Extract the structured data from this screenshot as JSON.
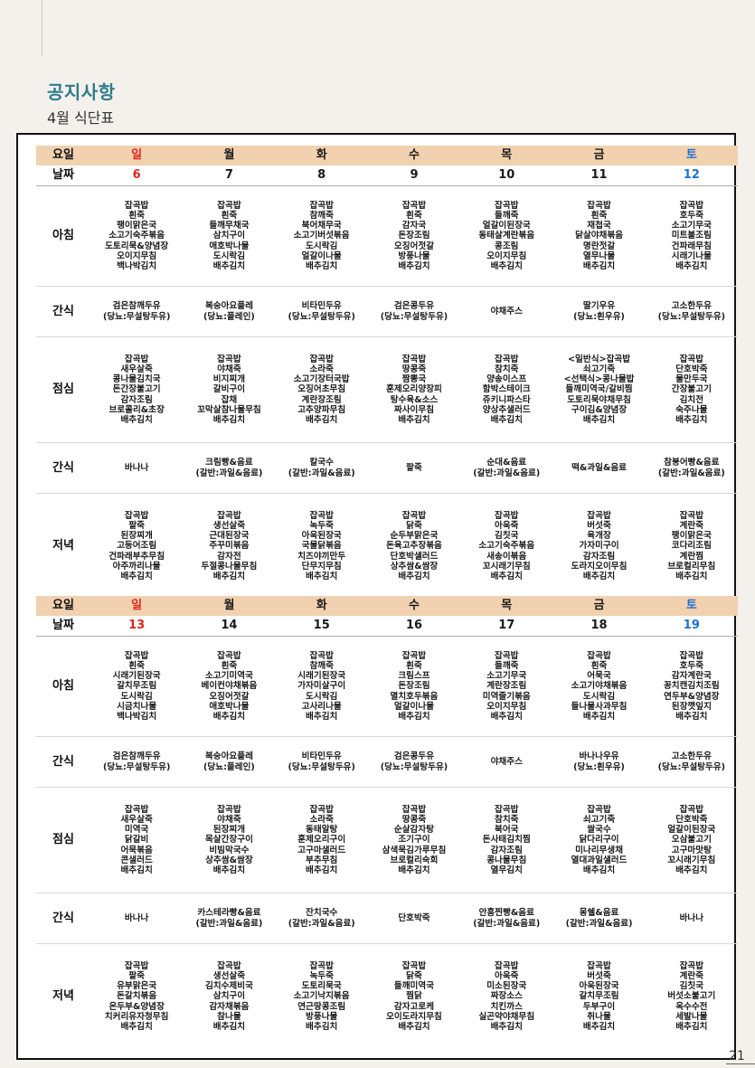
{
  "header": {
    "title": "공지사항",
    "subtitle": "4월 식단표"
  },
  "labels": {
    "day": "요일",
    "date": "날짜",
    "breakfast": "아침",
    "snack": "간식",
    "lunch": "점심",
    "dinner": "저녁"
  },
  "day_names": [
    "일",
    "월",
    "화",
    "수",
    "목",
    "금",
    "토"
  ],
  "weeks": [
    {
      "dates": [
        "6",
        "7",
        "8",
        "9",
        "10",
        "11",
        "12"
      ],
      "breakfast": [
        "잡곡밥\n흰죽\n팽이맑은국\n소고기숙주볶음\n도토리묵&양념장\n오이지무침\n백나박김치",
        "잡곡밥\n흰죽\n들깨무채국\n삼치구이\n애호박나물\n도시락김\n배추김치",
        "잡곡밥\n참깨죽\n북어채무국\n소고기버섯볶음\n도시락김\n얼갈이나물\n배추김치",
        "잡곡밥\n흰죽\n감자국\n돈장조림\n오징어젓갈\n방풍나물\n배추김치",
        "잡곡밥\n들깨죽\n얼갈이된장국\n동태살계란볶음\n콩조림\n오이지무침\n배추김치",
        "잡곡밥\n흰죽\n재첩국\n닭살야채볶음\n명란젓갈\n열무나물\n배추김치",
        "잡곡밥\n호두죽\n소고기무국\n미트볼조림\n건파래무침\n시래기나물\n배추김치"
      ],
      "snack1": [
        "검은참깨두유\n(당뇨:무설탕두유)",
        "복숭아요플레\n(당뇨:플레인)",
        "비타민두유\n(당뇨:무설탕두유)",
        "검은콩두유\n(당뇨:무설탕두유)",
        "야채주스",
        "딸기우유\n(당뇨:흰우유)",
        "고소한두유\n(당뇨:무설탕두유)"
      ],
      "lunch": [
        "잡곡밥\n새우살죽\n콩나물김치국\n돈간장불고기\n감자조림\n브로콜리&초장\n배추김치",
        "잡곡밥\n야채죽\n비지찌개\n갈비구이\n잡채\n꼬막살참나물무침\n배추김치",
        "잡곡밥\n소라죽\n소고기장터국밥\n오징어초무침\n계란장조림\n고추양파무침\n배추김치",
        "잡곡밥\n땅콩죽\n짬뽕국\n훈제오리양장피\n탕수육&소스\n짜사이무침\n배추김치",
        "잡곡밥\n참치죽\n양송이스프\n함박스테이크\n쥬키니파스타\n양상추샐러드\n배추김치",
        "<일반식>잡곡밥\n쇠고기죽\n<선택식>콩나물밥\n들깨미역국/갈비찜\n도토리묵야채무침\n구이김&양념장\n배추김치",
        "잡곡밥\n단호박죽\n물만두국\n간장불고기\n김치전\n숙주나물\n배추김치"
      ],
      "snack2": [
        "바나나",
        "크림빵&음료\n(갈반:과일&음료)",
        "칼국수\n(갈반:과일&음료)",
        "팥죽",
        "순대&음료\n(갈반:과일&음료)",
        "떡&과일&음료",
        "참붕어빵&음료\n(갈반:과일&음료)"
      ],
      "dinner": [
        "잡곡밥\n팥죽\n된장찌개\n고등어조림\n건파래부추무침\n아주까리나물\n배추김치",
        "잡곡밥\n생선살죽\n근대된장국\n주꾸미볶음\n감자전\n두절콩나물무침\n배추김치",
        "잡곡밥\n녹두죽\n아욱된장국\n국물닭볶음\n치즈야끼만두\n단무지무침\n배추김치",
        "잡곡밥\n닭죽\n순두부맑은국\n돈육고추장볶음\n단호박샐러드\n상추쌈&쌈장\n배추김치",
        "잡곡밥\n아욱죽\n김칫국\n소고기숙주볶음\n새송이볶음\n꼬시래기무침\n배추김치",
        "잡곡밥\n버섯죽\n육개장\n가자미구이\n감자조림\n도라지오이무침\n배추김치",
        "잡곡밥\n계란죽\n팽이맑은국\n코다리조림\n계란찜\n브로컬리무침\n배추김치"
      ]
    },
    {
      "dates": [
        "13",
        "14",
        "15",
        "16",
        "17",
        "18",
        "19"
      ],
      "breakfast": [
        "잡곡밥\n흰죽\n시래기된장국\n갈치무조림\n도시락김\n시금치나물\n백나박김치",
        "잡곡밥\n흰죽\n소고기미역국\n베이컨야채볶음\n오징어젓갈\n애호박나물\n배추김치",
        "잡곡밥\n참깨죽\n시래기된장국\n가자미살구이\n도시락김\n고사리나물\n배추김치",
        "잡곡밥\n흰죽\n크림스프\n돈장조림\n멸치호두볶음\n얼갈이나물\n배추김치",
        "잡곡밥\n들깨죽\n소고기무국\n계란장조림\n미역줄기볶음\n오이지무침\n배추김치",
        "잡곡밥\n흰죽\n어묵국\n소고기야채볶음\n도시락김\n들나물사과무침\n배추김치",
        "잡곡밥\n호두죽\n감자계란국\n꽁치캔김치조림\n연두부&양념장\n된장깻잎지\n배추김치"
      ],
      "snack1": [
        "검은참깨두유\n(당뇨:무설탕두유)",
        "복숭아요플레\n(당뇨:플레인)",
        "비타민두유\n(당뇨:무설탕두유)",
        "검은콩두유\n(당뇨:무설탕두유)",
        "야채주스",
        "바나나우유\n(당뇨:흰우유)",
        "고소한두유\n(당뇨:무설탕두유)"
      ],
      "lunch": [
        "잡곡밥\n새우살죽\n미역국\n닭갈비\n어묵볶음\n콘샐러드\n배추김치",
        "잡곡밥\n야채죽\n된장찌개\n목살간장구이\n비빔막국수\n상추쌈&쌈장\n배추김치",
        "잡곡밥\n소라죽\n동태알탕\n훈제오리구이\n고구마샐러드\n부추무침\n배추김치",
        "잡곡밥\n땅콩죽\n순살감자탕\n조기구이\n삼색묵김가루무침\n브로컬리숙회\n배추김치",
        "잡곡밥\n참치죽\n북어국\n돈사태김치찜\n감자조림\n콩나물무침\n열무김치",
        "잡곡밥\n쇠고기죽\n쌀국수\n닭다리구이\n미나리무생채\n열대과일샐러드\n배추김치",
        "잡곡밥\n단호박죽\n얼갈이된장국\n오삼불고기\n고구마맛탕\n꼬시래기무침\n배추김치"
      ],
      "snack2": [
        "바나나",
        "카스테라빵&음료\n(갈반:과일&음료)",
        "잔치국수\n(갈반:과일&음료)",
        "단호박죽",
        "안흥찐빵&음료\n(갈반:과일&음료)",
        "몽쉘&음료\n(갈반:과일&음료)",
        "바나나"
      ],
      "dinner": [
        "잡곡밥\n팥죽\n유부맑은국\n돈갈치볶음\n온두부&양념장\n치커리유자청무침\n배추김치",
        "잡곡밥\n생선살죽\n김치수제비국\n삼치구이\n감자채볶음\n참나물\n배추김치",
        "잡곡밥\n녹두죽\n도토리묵국\n소고기낙지볶음\n연근땅콩조림\n방풍나물\n배추김치",
        "잡곡밥\n닭죽\n들깨미역국\n찜닭\n감자고로케\n오이도라지무침\n배추김치",
        "잡곡밥\n아욱죽\n미소된장국\n짜장소스\n치킨까스\n실곤약야채무침\n배추김치",
        "잡곡밥\n버섯죽\n아욱된장국\n갈치무조림\n두부구이\n취나물\n배추김치",
        "잡곡밥\n계란죽\n김칫국\n버섯소불고기\n옥수수전\n세발나물\n배추김치"
      ]
    }
  ],
  "page_number": "21"
}
